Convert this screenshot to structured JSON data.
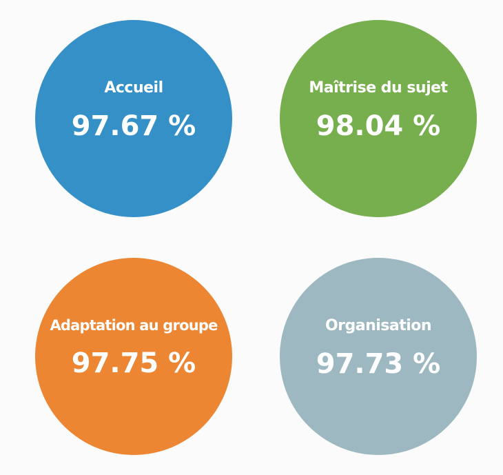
{
  "metrics": [
    {
      "label": "Accueil",
      "value": "97.67 %",
      "color": "#3590c8"
    },
    {
      "label": "Maîtrise du sujet",
      "value": "98.04 %",
      "color": "#77ae4e"
    },
    {
      "label": "Adaptation au groupe",
      "value": "97.75 %",
      "color": "#ec8633"
    },
    {
      "label": "Organisation",
      "value": "97.73 %",
      "color": "#9db8c1"
    }
  ]
}
